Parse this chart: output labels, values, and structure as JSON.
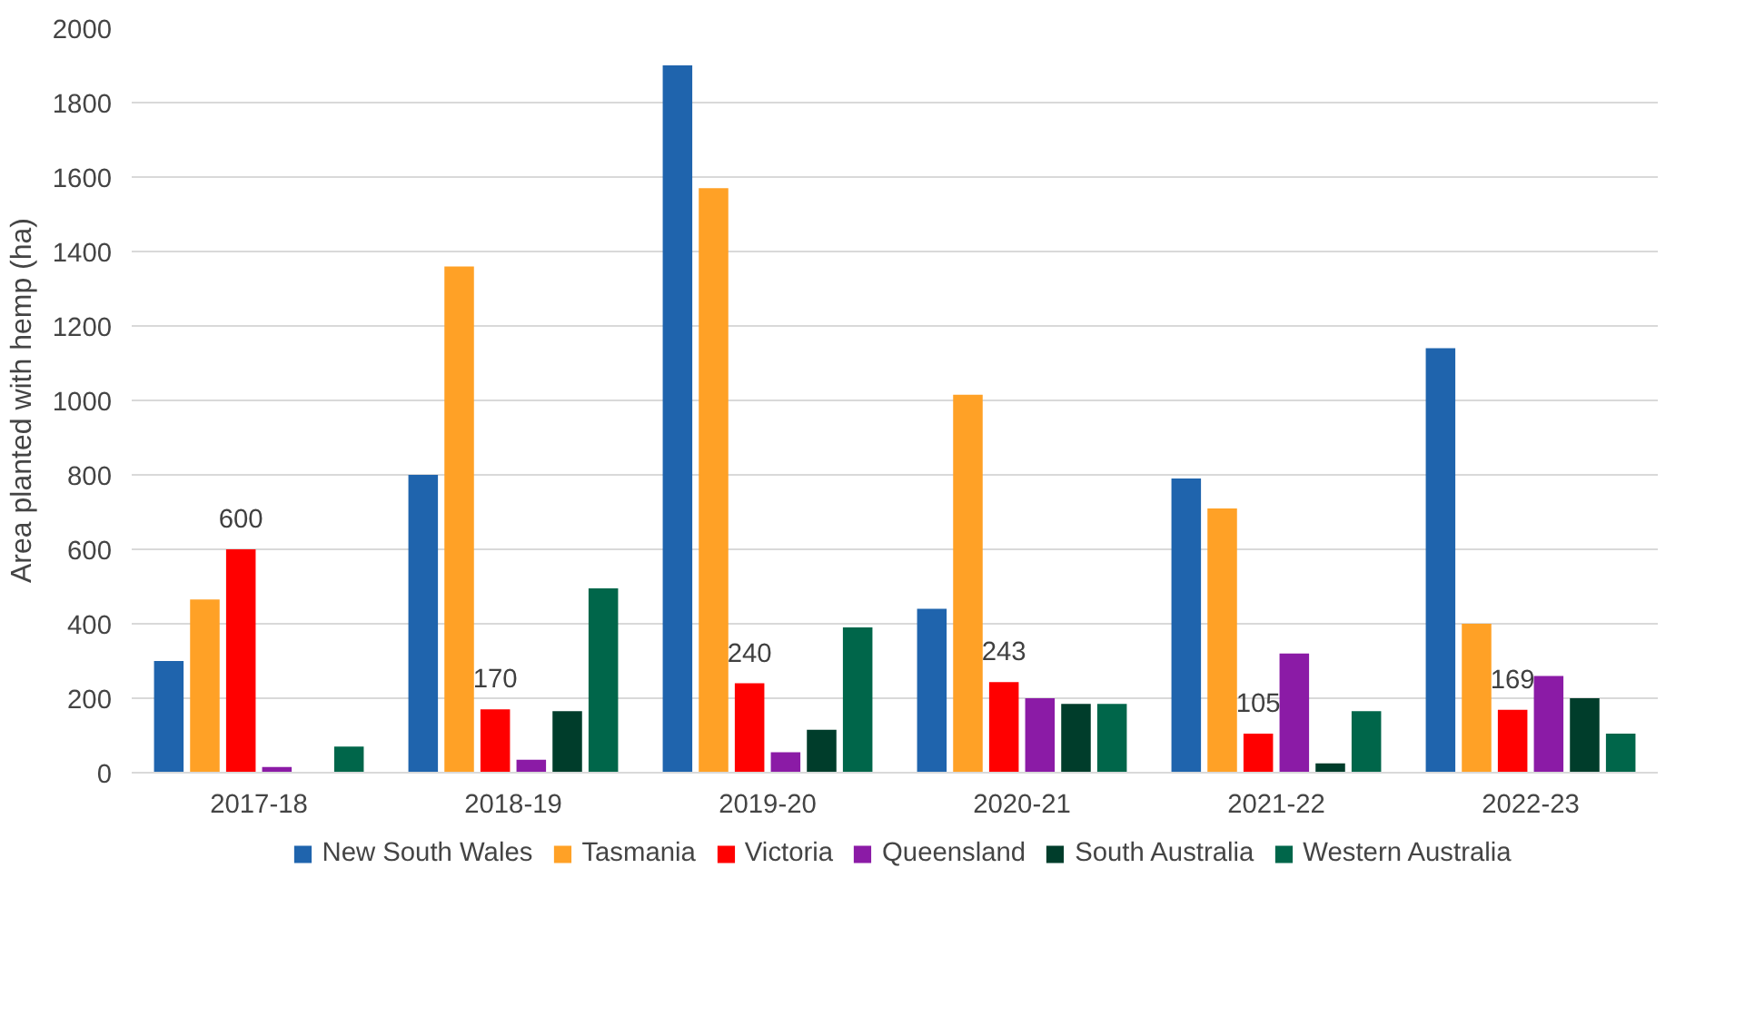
{
  "chart_data": {
    "type": "bar",
    "ylabel": "Area planted with hemp (ha)",
    "categories": [
      "2017-18",
      "2018-19",
      "2019-20",
      "2020-21",
      "2021-22",
      "2022-23"
    ],
    "series": [
      {
        "name": "New South Wales",
        "color": "#1f64ad",
        "values": [
          300,
          800,
          1900,
          440,
          790,
          1140
        ]
      },
      {
        "name": "Tasmania",
        "color": "#ffa126",
        "values": [
          465,
          1360,
          1570,
          1015,
          710,
          400
        ]
      },
      {
        "name": "Victoria",
        "color": "#ff0000",
        "values": [
          600,
          170,
          240,
          243,
          105,
          169
        ],
        "value_labels": [
          "600",
          "170",
          "240",
          "243",
          "105",
          "169"
        ]
      },
      {
        "name": "Queensland",
        "color": "#8b1ba6",
        "values": [
          15,
          35,
          55,
          200,
          320,
          260
        ]
      },
      {
        "name": "South Australia",
        "color": "#003d2b",
        "values": [
          0,
          165,
          115,
          185,
          25,
          200
        ]
      },
      {
        "name": "Western Australia",
        "color": "#00664a",
        "values": [
          70,
          495,
          390,
          185,
          165,
          105
        ]
      }
    ],
    "ylim": [
      0,
      2000
    ],
    "yticks": [
      0,
      200,
      400,
      600,
      800,
      1000,
      1200,
      1400,
      1600,
      1800,
      2000
    ],
    "grid": "y",
    "legend": "bottom"
  }
}
